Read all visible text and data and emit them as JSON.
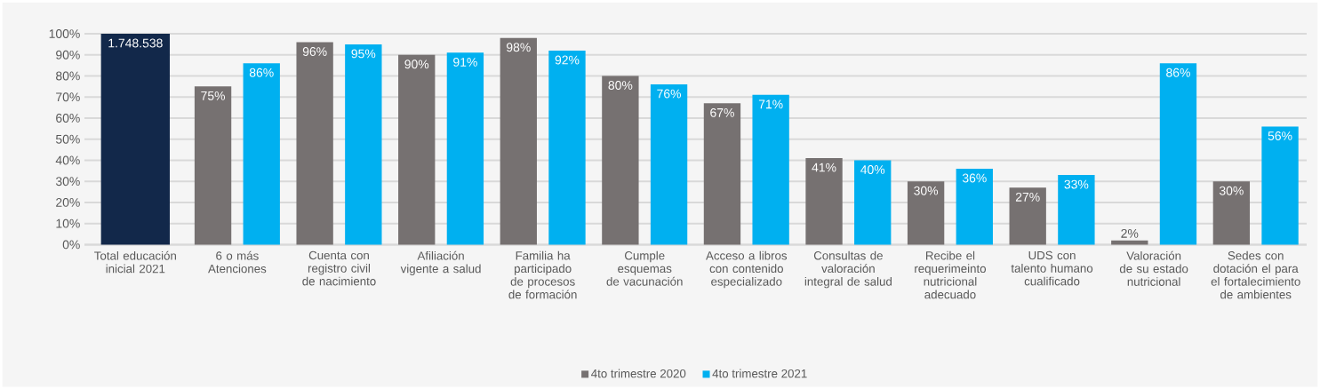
{
  "chart_data": {
    "type": "bar",
    "categories": [
      "Total educación inicial 2021",
      "6 o más Atenciones",
      "Cuenta con registro civil de nacimiento",
      "Afiliación vigente a salud",
      "Familia ha participado de procesos de formación",
      "Cumple esquemas de vacunación",
      "Acceso a libros con contenido especializado",
      "Consultas de valoración integral de salud",
      "Recibe el requerimeinto nutricional adecuado",
      "UDS con talento humano cualificado",
      "Valoración de su estado nutricional",
      "Sedes con dotación el para el fortalecimiento de ambientes"
    ],
    "series": [
      {
        "color": "#12284a",
        "values": [
          100,
          null,
          null,
          null,
          null,
          null,
          null,
          null,
          null,
          null,
          null,
          null
        ]
      },
      {
        "name": "4to trimestre 2020",
        "color": "#767171",
        "values": [
          null,
          75,
          96,
          90,
          98,
          80,
          67,
          41,
          30,
          27,
          2,
          30
        ],
        "value_labels": [
          null,
          "75%",
          "96%",
          "90%",
          "98%",
          "80%",
          "67%",
          "41%",
          "30%",
          "27%",
          "2%",
          "30%"
        ]
      },
      {
        "name": "4to trimestre 2021",
        "color": "#00b0f0",
        "values": [
          null,
          86,
          95,
          91,
          92,
          76,
          71,
          40,
          36,
          33,
          86,
          56
        ],
        "value_labels": [
          null,
          "86%",
          "95%",
          "91%",
          "92%",
          "76%",
          "71%",
          "40%",
          "36%",
          "33%",
          "86%",
          "56%"
        ]
      }
    ],
    "ylim": [
      0,
      100
    ],
    "yticks": [
      {
        "value": 0,
        "label": "0%"
      },
      {
        "value": 10,
        "label": "10%"
      },
      {
        "value": 20,
        "label": "20%"
      },
      {
        "value": 30,
        "label": "30%"
      },
      {
        "value": 40,
        "label": "40%"
      },
      {
        "value": 50,
        "label": "50%"
      },
      {
        "value": 60,
        "label": "60%"
      },
      {
        "value": 70,
        "label": "70%"
      },
      {
        "value": 80,
        "label": "80%"
      },
      {
        "value": 90,
        "label": "90%"
      },
      {
        "value": 100,
        "label": "100%"
      }
    ],
    "annotations": [
      {
        "text": "1.748.538",
        "x": "Total educación inicial 2021",
        "y": 100
      }
    ],
    "grid": "y",
    "legend": "bottom"
  }
}
